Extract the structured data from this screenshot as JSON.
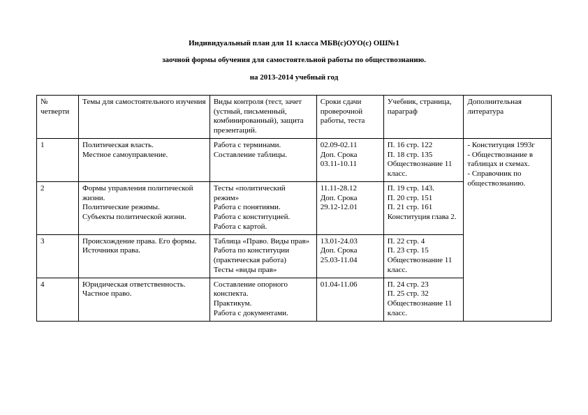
{
  "title": {
    "line1": "Индивидуальный план для    11 класса МБВ(с)ОУО(с)  ОШ№1",
    "line2": "заочной формы обучения для самостоятельной работы по обществознанию.",
    "line3": "на 2013-2014 учебный год"
  },
  "columns": {
    "num": "№ четверти",
    "topic": "Темы для самостоятельного изучения",
    "ctrl": "Виды контроля (тест, зачет (устный, письменный, комбинированный), защита  презентаций.",
    "date": "Сроки сдачи проверочной работы, теста",
    "book": "Учебник, страница, параграф",
    "lit": "Дополнительная литература"
  },
  "rows": [
    {
      "num": "1",
      "topic_l1": "Политическая власть.",
      "topic_l2": "Местное самоуправление.",
      "ctrl_l1": "Работа с терминами.",
      "ctrl_l2": "Составление таблицы.",
      "date_l1": "02.09-02.11",
      "date_l2": "Доп. Срока",
      "date_l3": "03.11-10.11",
      "book_l1": "П. 16 стр. 122",
      "book_l2": "П. 18 стр. 135",
      "book_l3": "Обществознание 11 класс."
    },
    {
      "num": "2",
      "topic_l1": "Формы управления политической жизни.",
      "topic_l2": "Политические режимы.",
      "topic_l3": "Субъекты политической жизни.",
      "ctrl_l1": "Тесты «политический режим»",
      "ctrl_l2": "Работа с понятиями.",
      "ctrl_l3": "Работа с конституцией.",
      "ctrl_l4": "Работа с картой.",
      "date_l1": "11.11-28.12",
      "date_l2": "Доп. Срока",
      "date_l3": "29.12-12.01",
      "book_l1": "П. 19 стр. 143.",
      "book_l2": "П. 20 стр. 151",
      "book_l3": "П. 21 стр. 161",
      "book_l4": "Конституция глава 2."
    },
    {
      "num": "3",
      "topic_l1": "Происхождение права. Его формы. Источники права.",
      "ctrl_l1": "Таблица «Право. Виды прав»",
      "ctrl_l2": "Работа по конституции (практическая работа)",
      "ctrl_l3": "Тесты «виды прав»",
      "date_l1": "13.01-24.03",
      "date_l2": "Доп. Срока",
      "date_l3": "25.03-11.04",
      "book_l1": "П. 22 стр. 4",
      "book_l2": "П. 23 стр. 15",
      "book_l3": "Обществознание 11 класс."
    },
    {
      "num": "4",
      "topic_l1": "Юридическая ответственность.",
      "topic_l2": "Частное право.",
      "ctrl_l1": "Составление опорного конспекта.",
      "ctrl_l2": "Практикум.",
      "ctrl_l3": "Работа с документами.",
      "date_l1": "01.04-11.06",
      "book_l1": "П. 24 стр. 23",
      "book_l2": "П. 25 стр. 32",
      "book_l3": "Обществознание 11 класс."
    }
  ],
  "lit": {
    "l1": "- Конституция 1993г",
    "l2": "- Обществознание в таблицах и схемах.",
    "l3": "- Справочник по обществознанию."
  }
}
